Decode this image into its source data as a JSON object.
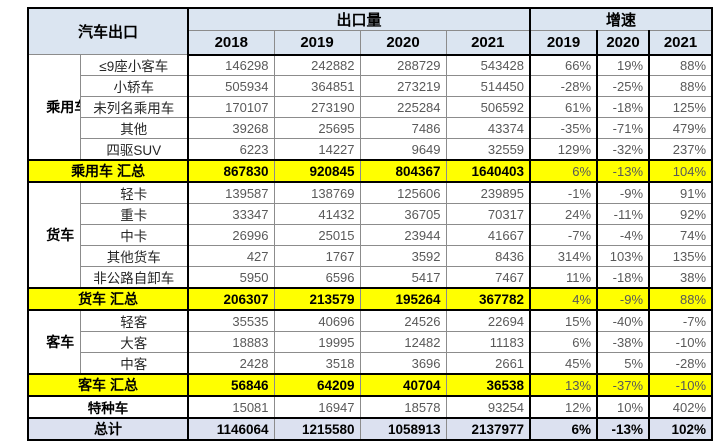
{
  "colors": {
    "header_fill": "#dbe5f1",
    "total_fill": "#dce1f0",
    "summary_highlight": "#ffff00",
    "value_text": "#595959"
  },
  "table": {
    "corner_label": "汽车出口",
    "group_headers": [
      {
        "label": "出口量",
        "colspan": 4
      },
      {
        "label": "增速",
        "colspan": 3
      }
    ],
    "year_headers": [
      "2018",
      "2019",
      "2020",
      "2021",
      "2019",
      "2020",
      "2021"
    ],
    "rows": [
      {
        "type": "data",
        "group": {
          "label": "乘用车",
          "rowspan": 5
        },
        "label": "≤9座小客车",
        "values": [
          146298,
          242882,
          288729,
          543428,
          "66%",
          "19%",
          "88%"
        ]
      },
      {
        "type": "data",
        "label": "小轿车",
        "values": [
          505934,
          364851,
          273219,
          514450,
          "-28%",
          "-25%",
          "88%"
        ]
      },
      {
        "type": "data",
        "label": "未列名乘用车",
        "values": [
          170107,
          273190,
          225284,
          506592,
          "61%",
          "-18%",
          "125%"
        ]
      },
      {
        "type": "data",
        "label": "其他",
        "values": [
          39268,
          25695,
          7486,
          43374,
          "-35%",
          "-71%",
          "479%"
        ]
      },
      {
        "type": "data",
        "label": "四驱SUV",
        "values": [
          6223,
          14227,
          9649,
          32559,
          "129%",
          "-32%",
          "237%"
        ]
      },
      {
        "type": "summary",
        "label": "乘用车 汇总",
        "values": [
          867830,
          920845,
          804367,
          1640403,
          "6%",
          "-13%",
          "104%"
        ]
      },
      {
        "type": "data",
        "group": {
          "label": "货车",
          "rowspan": 5
        },
        "label": "轻卡",
        "values": [
          139587,
          138769,
          125606,
          239895,
          "-1%",
          "-9%",
          "91%"
        ]
      },
      {
        "type": "data",
        "label": "重卡",
        "values": [
          33347,
          41432,
          36705,
          70317,
          "24%",
          "-11%",
          "92%"
        ]
      },
      {
        "type": "data",
        "label": "中卡",
        "values": [
          26996,
          25015,
          23944,
          41667,
          "-7%",
          "-4%",
          "74%"
        ]
      },
      {
        "type": "data",
        "label": "其他货车",
        "values": [
          427,
          1767,
          3592,
          8436,
          "314%",
          "103%",
          "135%"
        ]
      },
      {
        "type": "data",
        "label": "非公路自卸车",
        "values": [
          5950,
          6596,
          5417,
          7467,
          "11%",
          "-18%",
          "38%"
        ]
      },
      {
        "type": "summary",
        "label": "货车 汇总",
        "values": [
          206307,
          213579,
          195264,
          367782,
          "4%",
          "-9%",
          "88%"
        ]
      },
      {
        "type": "data",
        "group": {
          "label": "客车",
          "rowspan": 3
        },
        "label": "轻客",
        "values": [
          35535,
          40696,
          24526,
          22694,
          "15%",
          "-40%",
          "-7%"
        ]
      },
      {
        "type": "data",
        "label": "大客",
        "values": [
          18883,
          19995,
          12482,
          11183,
          "6%",
          "-38%",
          "-10%"
        ]
      },
      {
        "type": "data",
        "label": "中客",
        "values": [
          2428,
          3518,
          3696,
          2661,
          "45%",
          "5%",
          "-28%"
        ]
      },
      {
        "type": "summary",
        "label": "客车 汇总",
        "values": [
          56846,
          64209,
          40704,
          36538,
          "13%",
          "-37%",
          "-10%"
        ]
      },
      {
        "type": "special",
        "label": "特种车",
        "values": [
          15081,
          16947,
          18578,
          93254,
          "12%",
          "10%",
          "402%"
        ]
      },
      {
        "type": "total",
        "label": "总计",
        "values": [
          1146064,
          1215580,
          1058913,
          2137977,
          "6%",
          "-13%",
          "102%"
        ]
      }
    ]
  }
}
